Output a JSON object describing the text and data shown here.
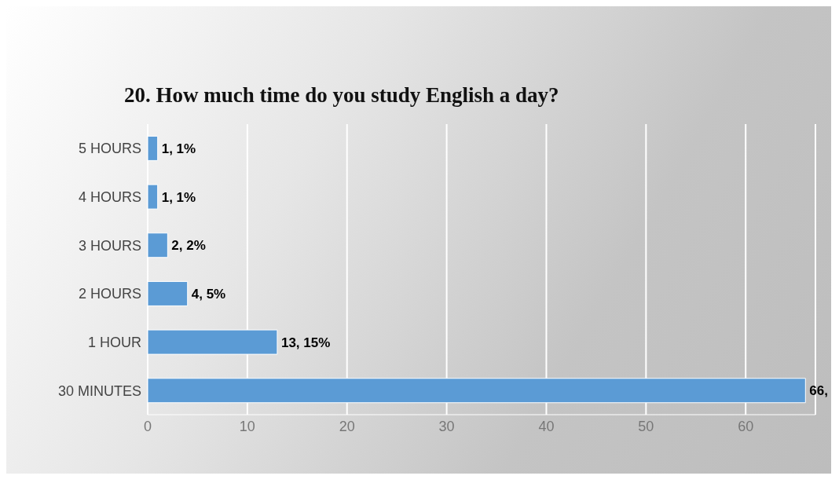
{
  "chart_data": {
    "type": "bar",
    "orientation": "horizontal",
    "title": "20. How much time do you study English a day?",
    "categories": [
      "5 HOURS",
      "4 HOURS",
      "3 HOURS",
      "2 HOURS",
      "1 HOUR",
      "30 MINUTES"
    ],
    "values": [
      1,
      1,
      2,
      4,
      13,
      66
    ],
    "value_labels": [
      "1, 1%",
      "1, 1%",
      "2, 2%",
      "4, 5%",
      "13, 15%",
      "66,"
    ],
    "color": "#5b9bd5",
    "xlim": [
      0,
      67
    ],
    "xticks": [
      0,
      10,
      20,
      30,
      40,
      50,
      60
    ],
    "grid": "x"
  }
}
